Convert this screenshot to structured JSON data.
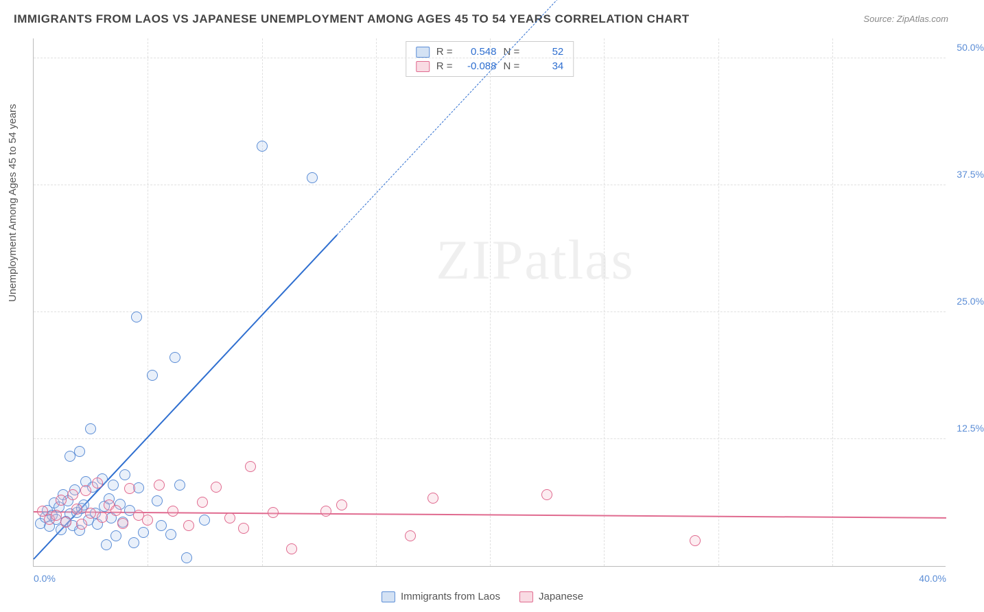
{
  "title": "IMMIGRANTS FROM LAOS VS JAPANESE UNEMPLOYMENT AMONG AGES 45 TO 54 YEARS CORRELATION CHART",
  "source_label": "Source:",
  "source_value": "ZipAtlas.com",
  "ylabel": "Unemployment Among Ages 45 to 54 years",
  "watermark_a": "ZIP",
  "watermark_b": "atlas",
  "chart": {
    "type": "scatter",
    "background_color": "#ffffff",
    "grid_color": "#e0e0e0",
    "axis_color": "#bbbbbb",
    "tick_color": "#5b8dd6",
    "xlim": [
      0,
      40
    ],
    "ylim": [
      0,
      52
    ],
    "xticks": [
      {
        "v": 0,
        "label": "0.0%"
      },
      {
        "v": 40,
        "label": "40.0%"
      }
    ],
    "yticks": [
      {
        "v": 12.5,
        "label": "12.5%"
      },
      {
        "v": 25.0,
        "label": "25.0%"
      },
      {
        "v": 37.5,
        "label": "37.5%"
      },
      {
        "v": 50.0,
        "label": "50.0%"
      }
    ],
    "grid_x_step": 5,
    "grid_y_step": 12.5,
    "marker_radius": 8,
    "marker_border_width": 1.5,
    "marker_fill_opacity": 0.25,
    "series": [
      {
        "id": "laos",
        "label": "Immigrants from Laos",
        "color_fill": "#a9c5ea",
        "color_stroke": "#5b8dd6",
        "R": "0.548",
        "N": "52",
        "trend": {
          "slope_solid": 2.4,
          "intercept": 0.6,
          "solid_xmax": 13.3,
          "dashed_xmax": 24.0,
          "color": "#2f6fd0"
        },
        "points": [
          [
            0.3,
            4.2
          ],
          [
            0.5,
            4.8
          ],
          [
            0.6,
            5.5
          ],
          [
            0.7,
            3.9
          ],
          [
            0.8,
            5.0
          ],
          [
            0.9,
            6.2
          ],
          [
            1.0,
            4.6
          ],
          [
            1.1,
            5.8
          ],
          [
            1.2,
            3.6
          ],
          [
            1.3,
            7.0
          ],
          [
            1.4,
            4.4
          ],
          [
            1.5,
            6.4
          ],
          [
            1.6,
            5.1
          ],
          [
            1.6,
            10.8
          ],
          [
            1.7,
            4.0
          ],
          [
            1.8,
            7.5
          ],
          [
            1.9,
            5.3
          ],
          [
            2.0,
            11.3
          ],
          [
            2.0,
            3.5
          ],
          [
            2.1,
            5.7
          ],
          [
            2.2,
            6.0
          ],
          [
            2.3,
            8.3
          ],
          [
            2.4,
            4.5
          ],
          [
            2.5,
            13.5
          ],
          [
            2.6,
            7.8
          ],
          [
            2.7,
            5.2
          ],
          [
            2.8,
            4.1
          ],
          [
            3.0,
            8.6
          ],
          [
            3.1,
            5.9
          ],
          [
            3.2,
            2.1
          ],
          [
            3.3,
            6.6
          ],
          [
            3.4,
            4.7
          ],
          [
            3.5,
            8.0
          ],
          [
            3.6,
            3.0
          ],
          [
            3.8,
            6.1
          ],
          [
            3.9,
            4.3
          ],
          [
            4.0,
            9.0
          ],
          [
            4.2,
            5.5
          ],
          [
            4.4,
            2.3
          ],
          [
            4.5,
            24.5
          ],
          [
            4.6,
            7.7
          ],
          [
            4.8,
            3.3
          ],
          [
            5.2,
            18.8
          ],
          [
            5.4,
            6.4
          ],
          [
            5.6,
            4.0
          ],
          [
            6.2,
            20.5
          ],
          [
            6.4,
            8.0
          ],
          [
            6.7,
            0.8
          ],
          [
            7.5,
            4.5
          ],
          [
            10.0,
            41.3
          ],
          [
            12.2,
            38.2
          ],
          [
            6.0,
            3.1
          ]
        ]
      },
      {
        "id": "japanese",
        "label": "Japanese",
        "color_fill": "#f3b8c8",
        "color_stroke": "#e06a8f",
        "R": "-0.088",
        "N": "34",
        "trend": {
          "slope": -0.015,
          "intercept": 5.3,
          "xmax": 40,
          "color": "#e06a8f"
        },
        "points": [
          [
            0.4,
            5.4
          ],
          [
            0.7,
            4.6
          ],
          [
            1.0,
            5.0
          ],
          [
            1.2,
            6.5
          ],
          [
            1.4,
            4.3
          ],
          [
            1.7,
            7.0
          ],
          [
            1.9,
            5.6
          ],
          [
            2.1,
            4.1
          ],
          [
            2.3,
            7.4
          ],
          [
            2.5,
            5.2
          ],
          [
            2.8,
            8.2
          ],
          [
            3.0,
            4.8
          ],
          [
            3.3,
            6.0
          ],
          [
            3.6,
            5.5
          ],
          [
            3.9,
            4.2
          ],
          [
            4.2,
            7.6
          ],
          [
            4.6,
            5.0
          ],
          [
            5.0,
            4.5
          ],
          [
            5.5,
            8.0
          ],
          [
            6.1,
            5.4
          ],
          [
            6.8,
            4.0
          ],
          [
            7.4,
            6.3
          ],
          [
            8.0,
            7.8
          ],
          [
            8.6,
            4.7
          ],
          [
            9.2,
            3.7
          ],
          [
            9.5,
            9.8
          ],
          [
            10.5,
            5.3
          ],
          [
            11.3,
            1.7
          ],
          [
            12.8,
            5.4
          ],
          [
            13.5,
            6.0
          ],
          [
            16.5,
            3.0
          ],
          [
            17.5,
            6.7
          ],
          [
            22.5,
            7.0
          ],
          [
            29.0,
            2.5
          ]
        ]
      }
    ]
  },
  "stat_legend": {
    "r_label": "R =",
    "n_label": "N ="
  }
}
